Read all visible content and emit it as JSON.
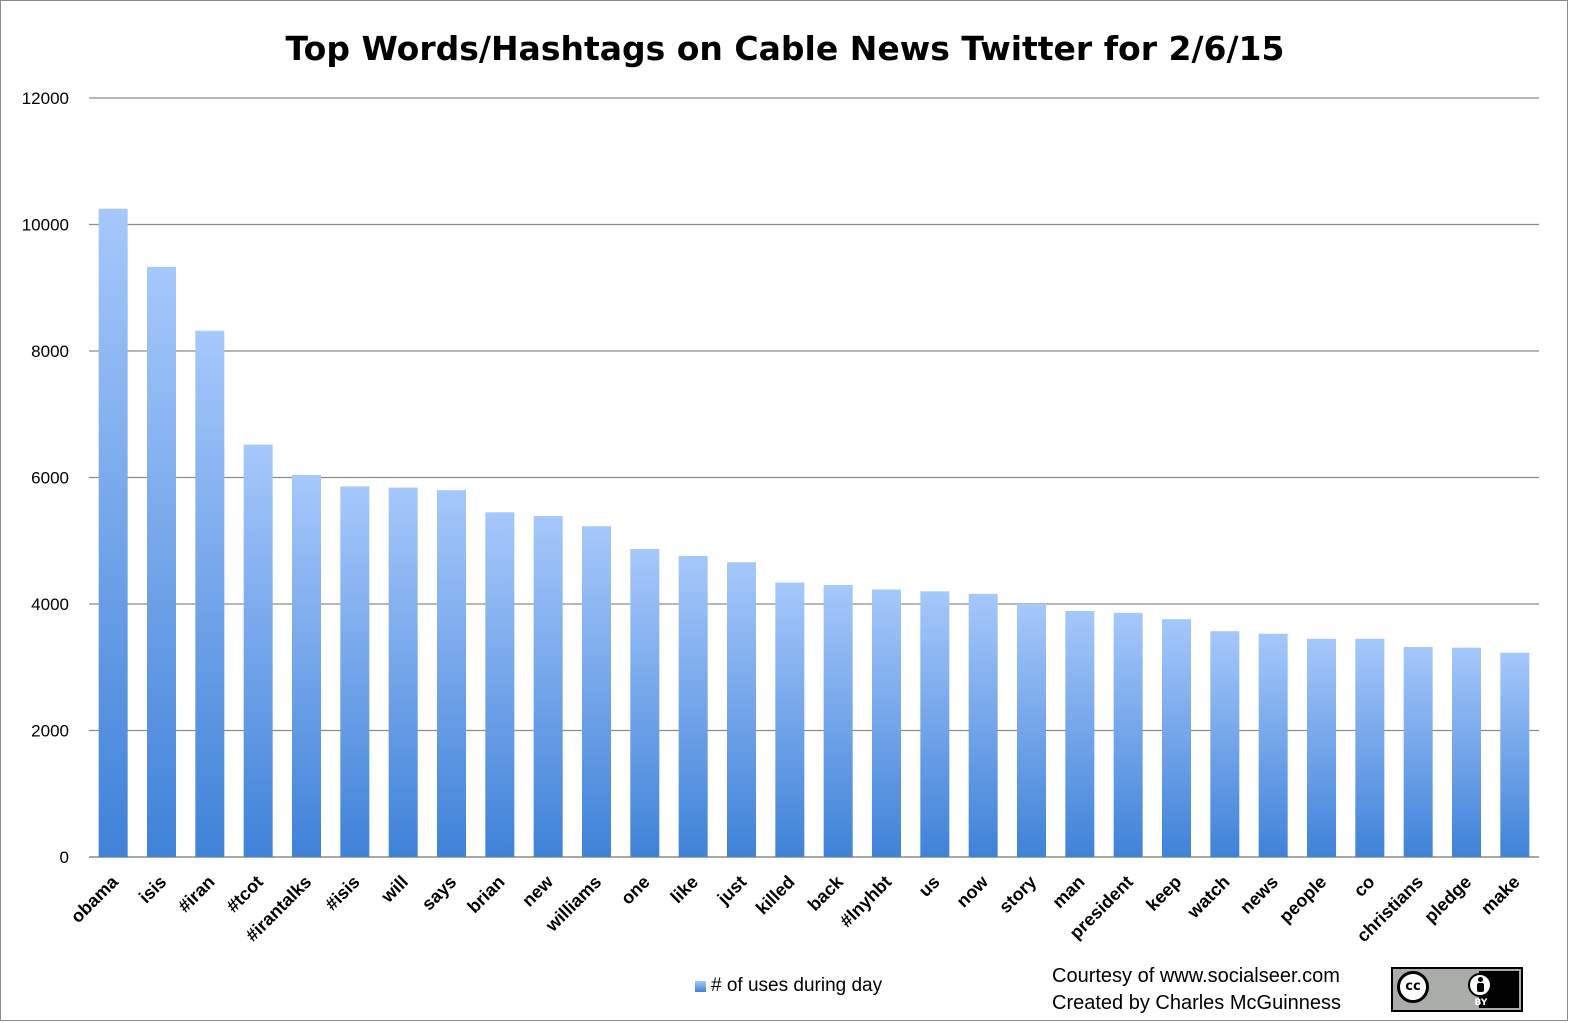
{
  "chart_data": {
    "type": "bar",
    "title": "Top Words/Hashtags on Cable News Twitter for 2/6/15",
    "xlabel": "",
    "ylabel": "",
    "ylim": [
      0,
      12000
    ],
    "yticks": [
      0,
      2000,
      4000,
      6000,
      8000,
      10000,
      12000
    ],
    "grid": true,
    "legend_position": "bottom",
    "categories": [
      "obama",
      "isis",
      "#iran",
      "#tcot",
      "#irantalks",
      "#isis",
      "will",
      "says",
      "brian",
      "new",
      "williams",
      "one",
      "like",
      "just",
      "killed",
      "back",
      "#lnyhbt",
      "us",
      "now",
      "story",
      "man",
      "president",
      "keep",
      "watch",
      "news",
      "people",
      "co",
      "christians",
      "pledge",
      "make"
    ],
    "series": [
      {
        "name": "# of uses during day",
        "values": [
          10250,
          9330,
          8320,
          6520,
          6040,
          5860,
          5840,
          5800,
          5450,
          5390,
          5230,
          4870,
          4760,
          4660,
          4340,
          4300,
          4230,
          4200,
          4160,
          4000,
          3890,
          3860,
          3760,
          3570,
          3530,
          3450,
          3450,
          3320,
          3310,
          3230
        ]
      }
    ],
    "colors": {
      "bar_top": "#a6c8fb",
      "bar_bottom": "#3f82d8",
      "grid": "#8c8c8c"
    }
  },
  "credits": {
    "line1": "Courtesy of www.socialseer.com",
    "line2": "Created by Charles McGuinness"
  },
  "license_badge": {
    "cc_text": "cc",
    "by_text": "BY",
    "icon": "creative-commons-by-icon"
  }
}
